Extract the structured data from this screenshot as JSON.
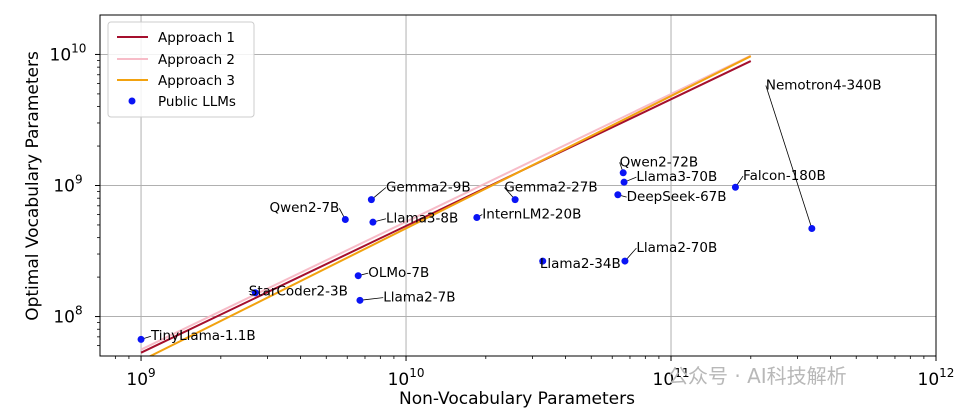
{
  "chart_data": {
    "type": "scatter",
    "title": "",
    "xlabel": "Non-Vocabulary Parameters",
    "ylabel": "Optimal Vocabulary Parameters",
    "x_scale": "log",
    "y_scale": "log",
    "xlim": [
      700000000,
      1000000000000
    ],
    "ylim": [
      50000000,
      20000000000
    ],
    "grid": true,
    "legend_position": "upper-left",
    "x_ticks": [
      {
        "value": 1000000000,
        "base": "10",
        "exp": "9"
      },
      {
        "value": 10000000000,
        "base": "10",
        "exp": "10"
      },
      {
        "value": 100000000000,
        "base": "10",
        "exp": "11"
      },
      {
        "value": 1000000000000,
        "base": "10",
        "exp": "12"
      }
    ],
    "y_ticks": [
      {
        "value": 100000000,
        "base": "10",
        "exp": "8"
      },
      {
        "value": 1000000000,
        "base": "10",
        "exp": "9"
      },
      {
        "value": 10000000000,
        "base": "10",
        "exp": "10"
      }
    ],
    "series": [
      {
        "name": "Approach 1",
        "kind": "line",
        "color": "#a50f2d",
        "x": [
          1000000000,
          200000000000
        ],
        "y": [
          53000000,
          8900000000
        ]
      },
      {
        "name": "Approach 2",
        "kind": "line",
        "color": "#f7bcc8",
        "x": [
          1000000000,
          200000000000
        ],
        "y": [
          56000000,
          9800000000
        ]
      },
      {
        "name": "Approach 3",
        "kind": "line",
        "color": "#f2a20f",
        "x": [
          1000000000,
          200000000000
        ],
        "y": [
          46000000,
          9700000000
        ]
      },
      {
        "name": "Public LLMs",
        "kind": "scatter",
        "color": "#0a14f5"
      }
    ],
    "points": [
      {
        "label": "TinyLlama-1.1B",
        "x": 1000000000,
        "y": 67000000,
        "lx": 1090000000,
        "ly": 66000000,
        "anchor": "start"
      },
      {
        "label": "StarCoder2-3B",
        "x": 2700000000,
        "y": 152000000,
        "lx": 2550000000,
        "ly": 145000000,
        "anchor": "start"
      },
      {
        "label": "OLMo-7B",
        "x": 6600000000,
        "y": 205000000,
        "lx": 7200000000,
        "ly": 200000000,
        "anchor": "start"
      },
      {
        "label": "Llama2-7B",
        "x": 6700000000,
        "y": 133000000,
        "lx": 8200000000,
        "ly": 130000000,
        "anchor": "start"
      },
      {
        "label": "Qwen2-7B",
        "x": 5900000000,
        "y": 550000000,
        "lx": 5600000000,
        "ly": 625000000,
        "anchor": "end"
      },
      {
        "label": "Gemma2-9B",
        "x": 7400000000,
        "y": 780000000,
        "lx": 8400000000,
        "ly": 900000000,
        "anchor": "start"
      },
      {
        "label": "Llama3-8B",
        "x": 7500000000,
        "y": 525000000,
        "lx": 8400000000,
        "ly": 520000000,
        "anchor": "start"
      },
      {
        "label": "InternLM2-20B",
        "x": 18500000000,
        "y": 570000000,
        "lx": 19400000000,
        "ly": 560000000,
        "anchor": "start"
      },
      {
        "label": "Gemma2-27B",
        "x": 25800000000,
        "y": 780000000,
        "lx": 23500000000,
        "ly": 900000000,
        "anchor": "start"
      },
      {
        "label": "Llama2-34B",
        "x": 32800000000,
        "y": 265000000,
        "lx": 32000000000,
        "ly": 235000000,
        "anchor": "start"
      },
      {
        "label": "Llama2-70B",
        "x": 67000000000,
        "y": 265000000,
        "lx": 74000000000,
        "ly": 310000000,
        "anchor": "start"
      },
      {
        "label": "Qwen2-72B",
        "x": 66000000000,
        "y": 1250000000,
        "lx": 64000000000,
        "ly": 1400000000,
        "anchor": "start"
      },
      {
        "label": "Llama3-70B",
        "x": 66500000000,
        "y": 1060000000,
        "lx": 74000000000,
        "ly": 1080000000,
        "anchor": "start"
      },
      {
        "label": "DeepSeek-67B",
        "x": 63000000000,
        "y": 850000000,
        "lx": 68000000000,
        "ly": 760000000,
        "anchor": "start"
      },
      {
        "label": "Falcon-180B",
        "x": 175000000000,
        "y": 970000000,
        "lx": 187000000000,
        "ly": 1100000000,
        "anchor": "start"
      },
      {
        "label": "Nemotron4-340B",
        "x": 340000000000,
        "y": 470000000,
        "lx": 228000000000,
        "ly": 5400000000,
        "anchor": "start"
      }
    ]
  },
  "watermark": "公众号 · AI科技解析"
}
